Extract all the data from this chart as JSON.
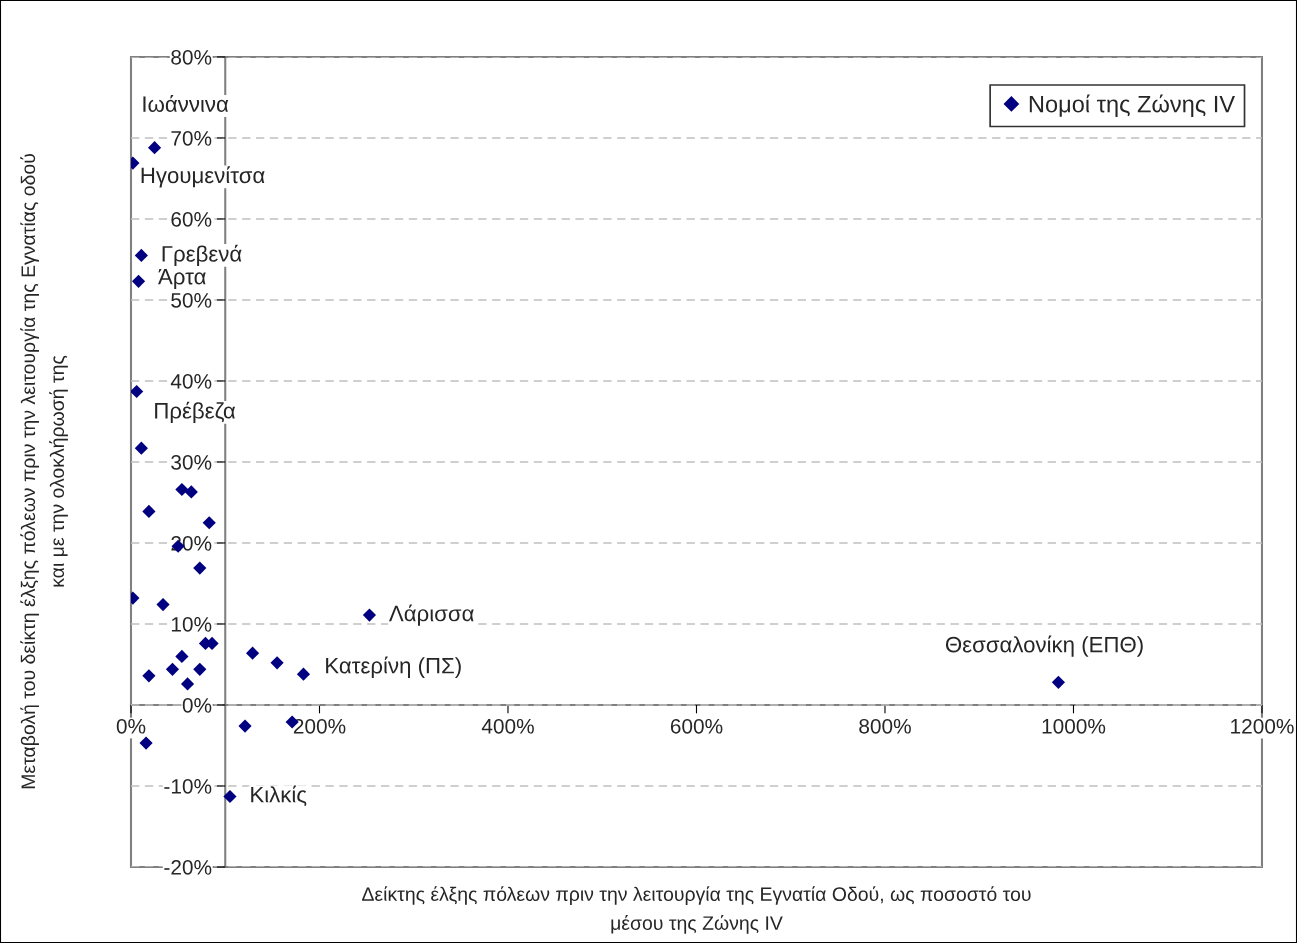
{
  "chart_data": {
    "type": "scatter",
    "xlabel": "Δείκτης έλξης πόλεων πριν την λειτουργία της Εγνατία Οδού, ως ποσοστό του\nμέσου της Ζώνης IV",
    "ylabel": "Μεταβολή του δείκτη έλξης πόλεων πριν την λειτουργία της Εγνατίας οδού\nκαι με την ολοκλήρωσή της",
    "series": [
      {
        "name": "Νομοί της Ζώνης IV",
        "color": "#000080",
        "x": [
          25,
          2,
          11,
          8,
          6,
          11,
          54,
          64,
          19,
          83,
          50,
          73,
          2,
          34,
          79,
          86,
          54,
          129,
          155,
          183,
          44,
          73,
          19,
          60,
          253,
          121,
          171,
          16,
          105,
          984
        ],
        "values": [
          68.8,
          66.9,
          55.5,
          52.3,
          38.7,
          31.7,
          26.6,
          26.3,
          23.9,
          22.5,
          19.6,
          16.9,
          13.2,
          12.4,
          7.6,
          7.6,
          6.0,
          6.4,
          5.2,
          3.8,
          4.4,
          4.4,
          3.6,
          2.6,
          11.1,
          -2.6,
          -2.1,
          -4.7,
          -11.3,
          2.8
        ]
      }
    ],
    "annotations": [
      {
        "text": "Ιωάννινα",
        "x": 25,
        "y": 68.8
      },
      {
        "text": "Ηγουμενίτσα",
        "x": 2,
        "y": 66.9
      },
      {
        "text": "Γρεβενά",
        "x": 11,
        "y": 55.5
      },
      {
        "text": "Άρτα",
        "x": 8,
        "y": 52.3
      },
      {
        "text": "Πρέβεζα",
        "x": 6,
        "y": 38.7
      },
      {
        "text": "Λάρισσα",
        "x": 253,
        "y": 11.1
      },
      {
        "text": "Κατερίνη (ΠΣ)",
        "x": 183,
        "y": 3.8
      },
      {
        "text": "Κιλκίς",
        "x": 105,
        "y": -11.3
      },
      {
        "text": "Θεσσαλονίκη (ΕΠΘ)",
        "x": 984,
        "y": 2.8
      }
    ],
    "xlim": [
      0,
      1200
    ],
    "xticks": [
      {
        "value": 0,
        "label": "0%"
      },
      {
        "value": 200,
        "label": "200%"
      },
      {
        "value": 400,
        "label": "400%"
      },
      {
        "value": 600,
        "label": "600%"
      },
      {
        "value": 800,
        "label": "800%"
      },
      {
        "value": 1000,
        "label": "1000%"
      },
      {
        "value": 1200,
        "label": "1200%"
      }
    ],
    "ylim": [
      -20,
      80
    ],
    "yticks": [
      {
        "value": -20,
        "label": "-20%"
      },
      {
        "value": -10,
        "label": "-10%"
      },
      {
        "value": 0,
        "label": "0%"
      },
      {
        "value": 10,
        "label": "10%"
      },
      {
        "value": 20,
        "label": "20%"
      },
      {
        "value": 30,
        "label": "30%"
      },
      {
        "value": 40,
        "label": "40%"
      },
      {
        "value": 50,
        "label": "50%"
      },
      {
        "value": 60,
        "label": "60%"
      },
      {
        "value": 70,
        "label": "70%"
      },
      {
        "value": 80,
        "label": "80%"
      }
    ],
    "grid": "y",
    "legend": "top right",
    "marker": "diamond"
  }
}
